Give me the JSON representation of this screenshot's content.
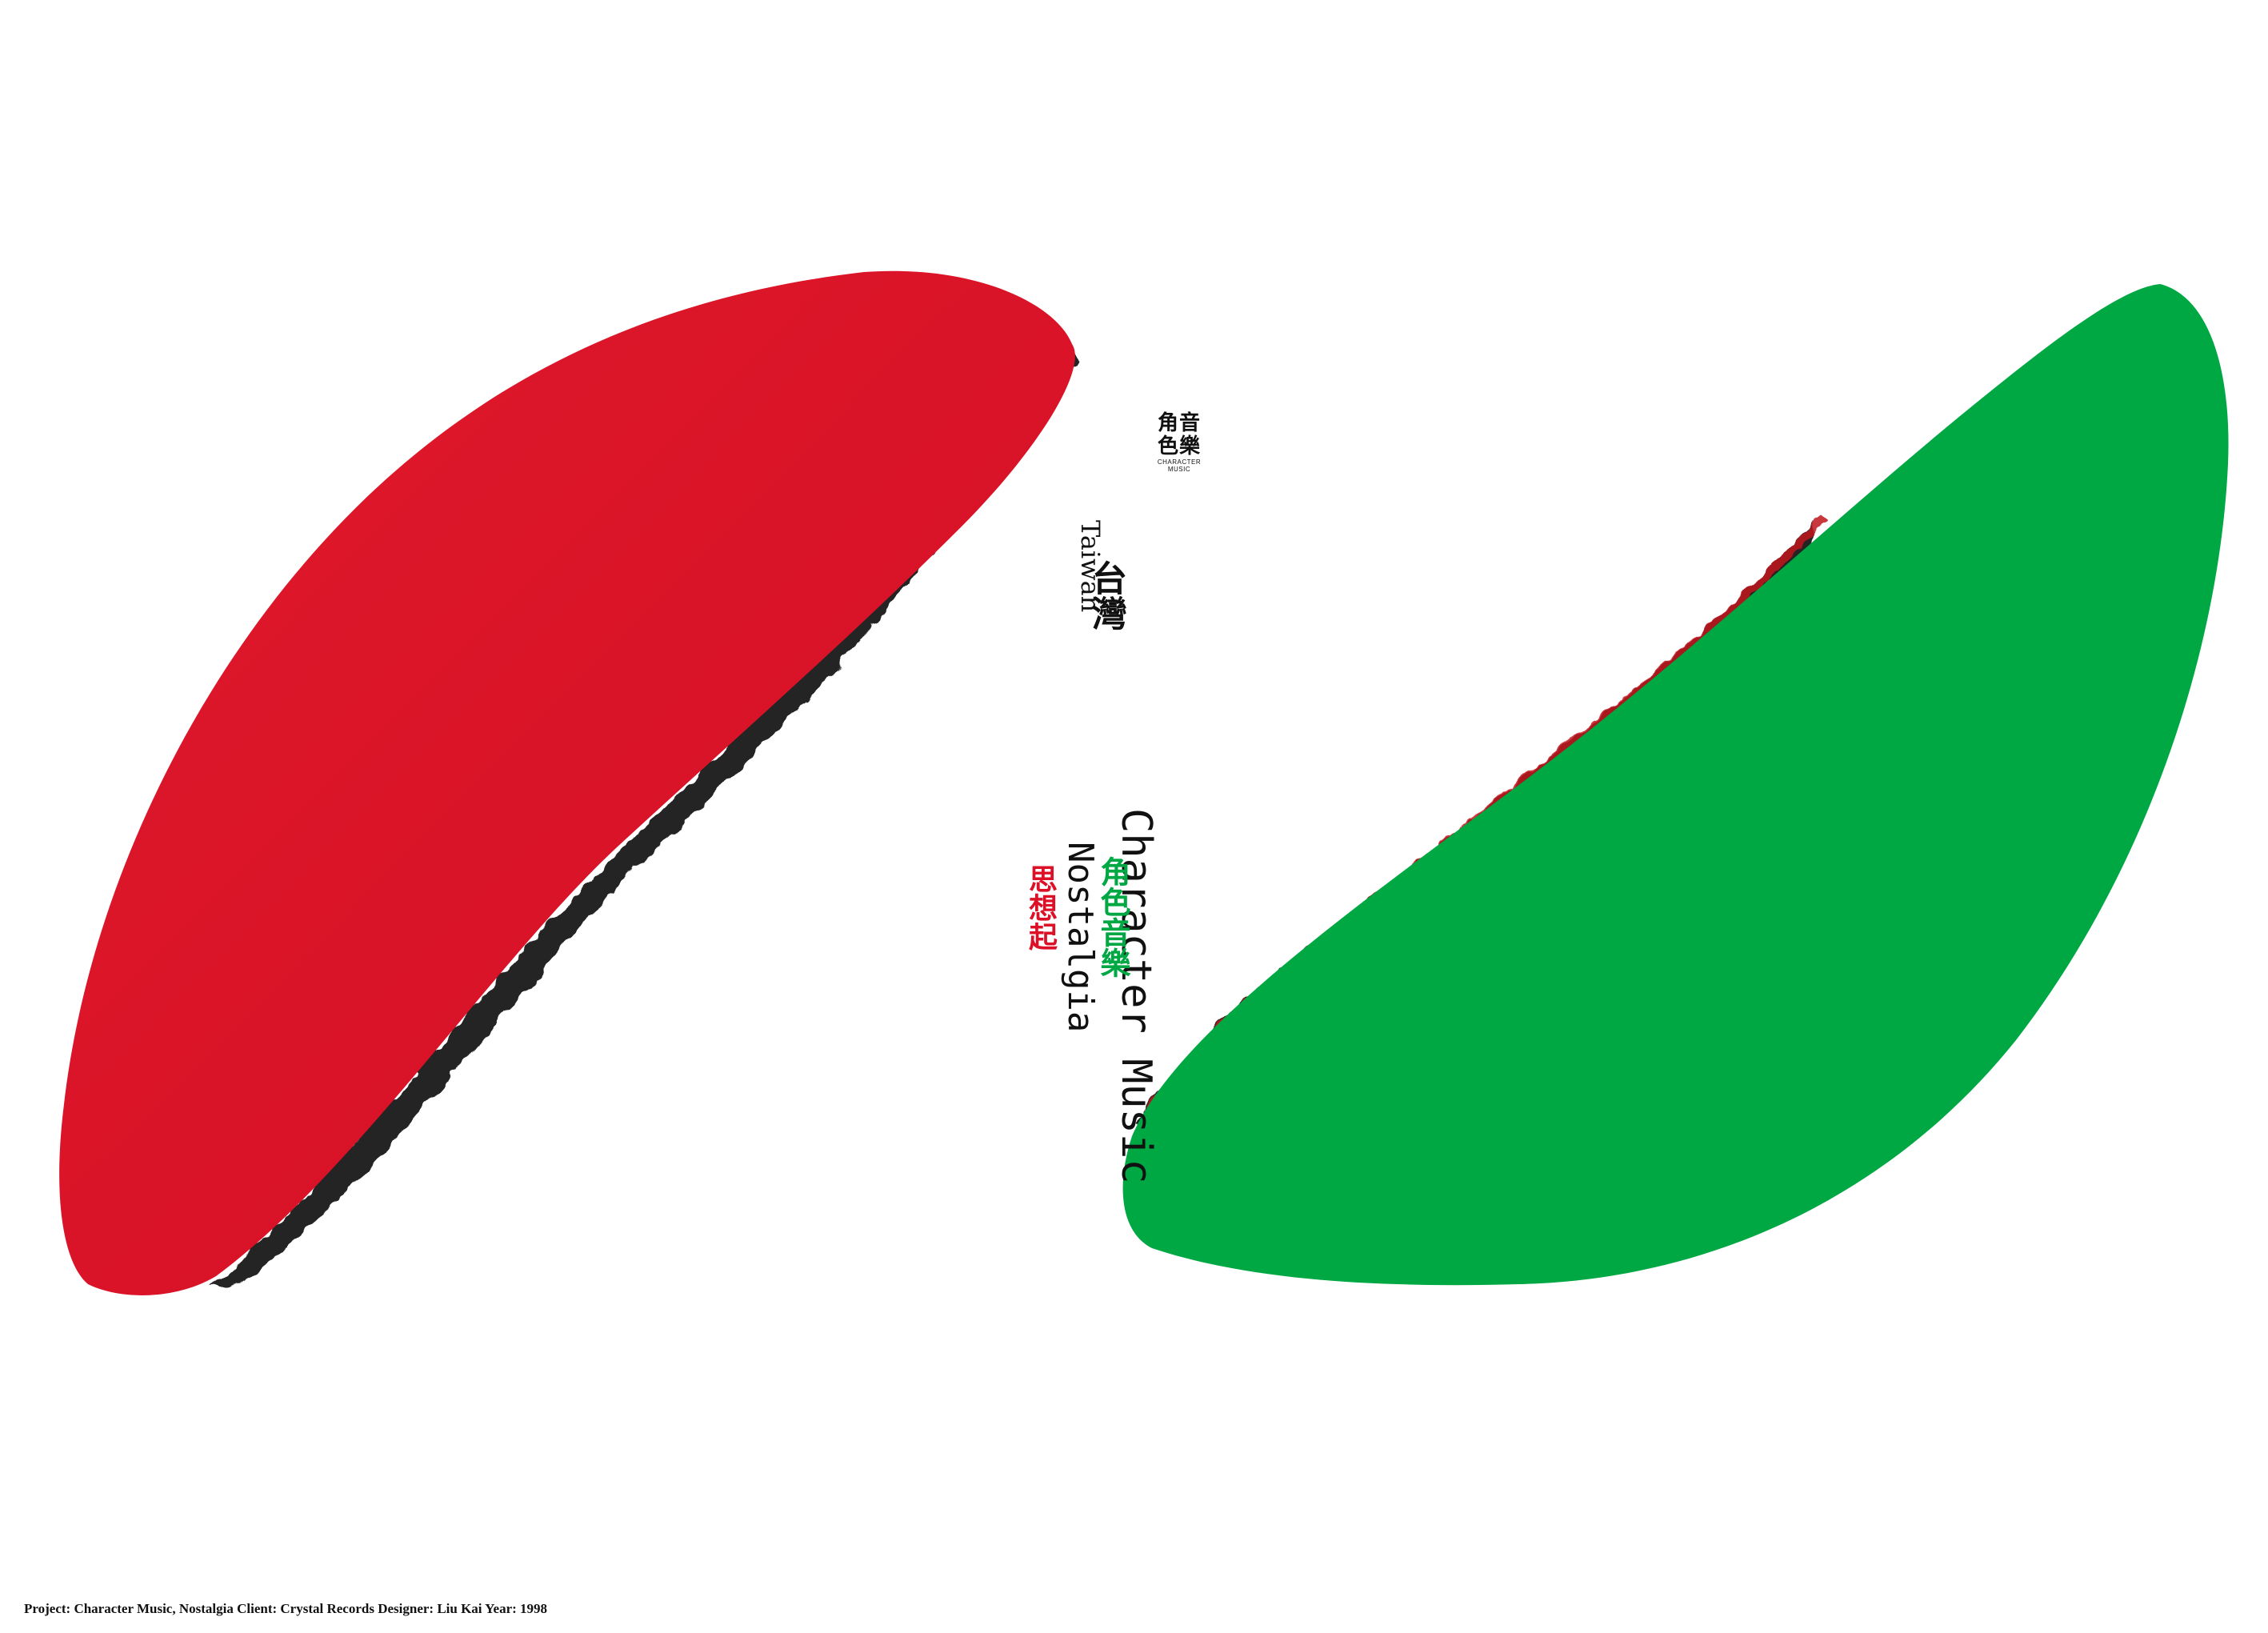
{
  "colors": {
    "background": "#ffffff",
    "red_shape": "#dc1027",
    "green_shape": "#00a843",
    "ink_edge": "#111111",
    "text": "#111111"
  },
  "logo": {
    "cjk_top": "角音",
    "cjk_bottom": "色樂",
    "sub_top": "CHARACTER",
    "sub_bottom": "MUSIC"
  },
  "taiwan": {
    "cjk": "台灣",
    "en": "Taiwan"
  },
  "title": {
    "en": "Character Music",
    "cjk": "角色音樂"
  },
  "subtitle": {
    "en": "Nostalgia",
    "cjk": "思想起"
  },
  "caption": "Project: Character Music, Nostalgia Client: Crystal Records Designer: Liu Kai Year: 1998"
}
